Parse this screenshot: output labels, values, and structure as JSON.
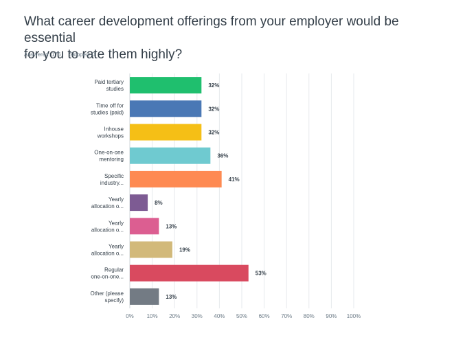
{
  "question": {
    "line1": "What career development offerings from your employer would be essential",
    "line2": "for you to rate them highly?"
  },
  "stats": {
    "answered": "Answered: 176",
    "skipped": "Skipped: 0"
  },
  "chart_data": {
    "type": "bar",
    "orientation": "horizontal",
    "categories": [
      [
        "Paid tertiary",
        "studies"
      ],
      [
        "Time off for",
        "studies (paid)"
      ],
      [
        "Inhouse",
        "workshops"
      ],
      [
        "One-on-one",
        "mentoring"
      ],
      [
        "Specific",
        "industry..."
      ],
      [
        "Yearly",
        "allocation o..."
      ],
      [
        "Yearly",
        "allocation o..."
      ],
      [
        "Yearly",
        "allocation o..."
      ],
      [
        "Regular",
        "one-on-one..."
      ],
      [
        "Other (please",
        "specify)"
      ]
    ],
    "values": [
      32,
      32,
      32,
      36,
      41,
      8,
      13,
      19,
      53,
      13
    ],
    "value_labels": [
      "32%",
      "32%",
      "32%",
      "36%",
      "41%",
      "8%",
      "13%",
      "19%",
      "53%",
      "13%"
    ],
    "colors": [
      "#1fbf6e",
      "#4a78b5",
      "#f5bf16",
      "#6fcad0",
      "#fe8a52",
      "#7d5b93",
      "#dc5e91",
      "#d2b97a",
      "#d94a5f",
      "#737b84"
    ],
    "xlim": [
      0,
      100
    ],
    "xticks": [
      "0%",
      "10%",
      "20%",
      "30%",
      "40%",
      "50%",
      "60%",
      "70%",
      "80%",
      "90%",
      "100%"
    ],
    "grid": true
  }
}
